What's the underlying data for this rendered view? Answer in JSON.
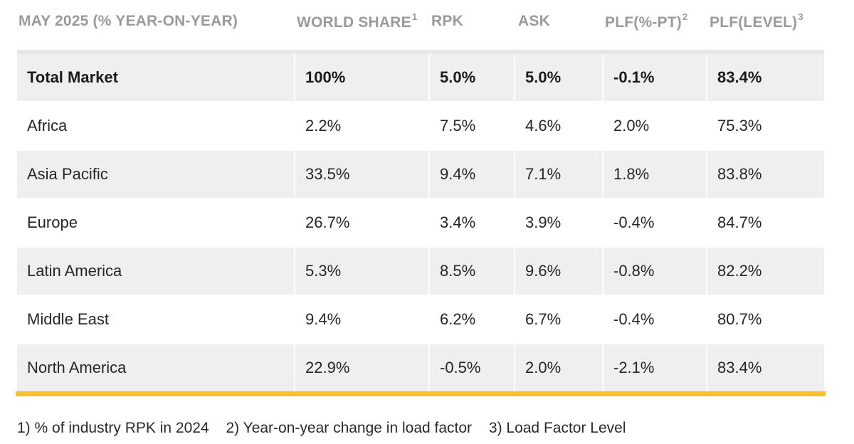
{
  "chart_data": {
    "type": "table",
    "columns": [
      {
        "label": "MAY 2025 (% YEAR-ON-YEAR)",
        "note": ""
      },
      {
        "label": "WORLD SHARE",
        "note": "1"
      },
      {
        "label": "RPK",
        "note": ""
      },
      {
        "label": "ASK",
        "note": ""
      },
      {
        "label": "PLF(%-PT)",
        "note": "2"
      },
      {
        "label": "PLF(LEVEL)",
        "note": "3"
      }
    ],
    "rows": [
      {
        "region": "Total Market",
        "world_share": "100%",
        "rpk": "5.0%",
        "ask": "5.0%",
        "plf_pt": "-0.1%",
        "plf_level": "83.4%"
      },
      {
        "region": "Africa",
        "world_share": "2.2%",
        "rpk": "7.5%",
        "ask": "4.6%",
        "plf_pt": "2.0%",
        "plf_level": "75.3%"
      },
      {
        "region": "Asia Pacific",
        "world_share": "33.5%",
        "rpk": "9.4%",
        "ask": "7.1%",
        "plf_pt": "1.8%",
        "plf_level": "83.8%"
      },
      {
        "region": "Europe",
        "world_share": "26.7%",
        "rpk": "3.4%",
        "ask": "3.9%",
        "plf_pt": "-0.4%",
        "plf_level": "84.7%"
      },
      {
        "region": "Latin America",
        "world_share": "5.3%",
        "rpk": "8.5%",
        "ask": "9.6%",
        "plf_pt": "-0.8%",
        "plf_level": "82.2%"
      },
      {
        "region": "Middle East",
        "world_share": "9.4%",
        "rpk": "6.2%",
        "ask": "6.7%",
        "plf_pt": "-0.4%",
        "plf_level": "80.7%"
      },
      {
        "region": "North America",
        "world_share": "22.9%",
        "rpk": "-0.5%",
        "ask": "2.0%",
        "plf_pt": "-2.1%",
        "plf_level": "83.4%"
      }
    ],
    "footnotes": [
      "1) % of industry RPK in 2024",
      "2) Year-on-year change in load factor",
      "3) Load Factor Level"
    ]
  },
  "colors": {
    "header_text": "#9a9a9a",
    "row_shade": "#efefef",
    "accent_rule": "#f5c22b"
  }
}
